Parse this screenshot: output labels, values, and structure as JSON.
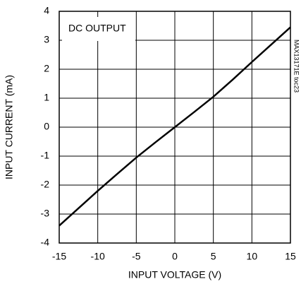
{
  "chart_data": {
    "type": "line",
    "annotations": [
      "DC OUTPUT",
      "MAX13171E toc23"
    ],
    "x_label": "INPUT VOLTAGE (V)",
    "y_label": "INPUT CURRENT (mA)",
    "x": [
      -15,
      -12.5,
      -10,
      -7.5,
      -5,
      -2.5,
      0,
      2.5,
      5,
      7.5,
      10,
      12.5,
      15
    ],
    "series": [
      {
        "color": "#000000",
        "values": [
          -3.4,
          -2.8,
          -2.2,
          -1.62,
          -1.05,
          -0.52,
          0,
          0.52,
          1.05,
          1.64,
          2.25,
          2.85,
          3.45
        ]
      }
    ],
    "xlim": [
      -15,
      15
    ],
    "xticks": [
      -15,
      -10,
      -5,
      0,
      5,
      10,
      15
    ],
    "ylim": [
      -4,
      4
    ],
    "yticks": [
      -4,
      -3,
      -2,
      -1,
      0,
      1,
      2,
      3,
      4
    ],
    "grid": true
  }
}
